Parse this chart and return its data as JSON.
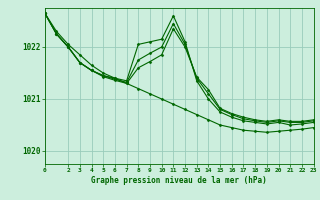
{
  "background_color": "#cceedd",
  "grid_color": "#99ccbb",
  "line_color": "#006600",
  "text_color": "#006600",
  "xlabel": "Graphe pression niveau de la mer (hPa)",
  "ylim": [
    1019.75,
    1022.75
  ],
  "xlim": [
    0,
    23
  ],
  "yticks": [
    1020,
    1021,
    1022
  ],
  "xticks": [
    0,
    2,
    3,
    4,
    5,
    6,
    7,
    8,
    9,
    10,
    11,
    12,
    13,
    14,
    15,
    16,
    17,
    18,
    19,
    20,
    21,
    22,
    23
  ],
  "series": [
    [
      1022.65,
      1022.3,
      1022.05,
      1021.85,
      1021.65,
      1021.5,
      1021.4,
      1021.3,
      1021.2,
      1021.1,
      1021.0,
      1020.9,
      1020.8,
      1020.7,
      1020.6,
      1020.5,
      1020.45,
      1020.4,
      1020.38,
      1020.36,
      1020.38,
      1020.4,
      1020.42,
      1020.45
    ],
    [
      1022.65,
      1022.25,
      1022.0,
      1021.7,
      1021.55,
      1021.45,
      1021.4,
      1021.35,
      1022.05,
      1022.1,
      1022.15,
      1022.6,
      1022.1,
      1021.35,
      1021.0,
      1020.75,
      1020.65,
      1020.58,
      1020.55,
      1020.52,
      1020.55,
      1020.5,
      1020.52,
      1020.55
    ],
    [
      1022.65,
      1022.25,
      1022.0,
      1021.7,
      1021.55,
      1021.45,
      1021.38,
      1021.32,
      1021.75,
      1021.88,
      1022.0,
      1022.45,
      1022.05,
      1021.4,
      1021.1,
      1020.8,
      1020.7,
      1020.62,
      1020.58,
      1020.55,
      1020.58,
      1020.55,
      1020.55,
      1020.58
    ],
    [
      1022.65,
      1022.25,
      1022.0,
      1021.7,
      1021.55,
      1021.43,
      1021.36,
      1021.3,
      1021.6,
      1021.72,
      1021.85,
      1022.35,
      1022.0,
      1021.42,
      1021.18,
      1020.82,
      1020.72,
      1020.65,
      1020.6,
      1020.57,
      1020.6,
      1020.57,
      1020.57,
      1020.6
    ]
  ]
}
